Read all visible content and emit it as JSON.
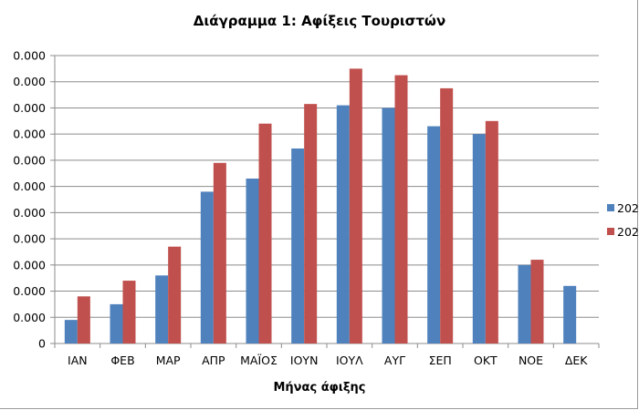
{
  "chart_data": {
    "type": "bar",
    "title": "Διάγραμμα 1: Αφίξεις Τουριστών",
    "xlabel": "Μήνας άφιξης",
    "ylabel": "",
    "categories": [
      "ΙΑΝ",
      "ΦΕΒ",
      "ΜΑΡ",
      "ΑΠΡ",
      "ΜΑΪΟΣ",
      "ΙΟΥΝ",
      "ΙΟΥΛ",
      "ΑΥΓ",
      "ΣΕΠ",
      "ΟΚΤ",
      "ΝΟΕ",
      "ΔΕΚ"
    ],
    "y_tick_labels": [
      "0",
      "0.000",
      "0.000",
      "0.000",
      "0.000",
      "0.000",
      "0.000",
      "0.000",
      "0.000",
      "0.000",
      "0.000",
      "0.000"
    ],
    "ylim": [
      0,
      11
    ],
    "grid": true,
    "legend_position": "right",
    "series": [
      {
        "name": "202",
        "color": "#4f81bd",
        "values": [
          0.9,
          1.5,
          2.6,
          5.8,
          6.3,
          7.45,
          9.1,
          9.0,
          8.3,
          8.0,
          3.0,
          2.2
        ]
      },
      {
        "name": "202",
        "color": "#c0504d",
        "values": [
          1.8,
          2.4,
          3.7,
          6.9,
          8.4,
          9.15,
          10.5,
          10.25,
          9.75,
          8.5,
          3.2,
          null
        ]
      }
    ]
  }
}
